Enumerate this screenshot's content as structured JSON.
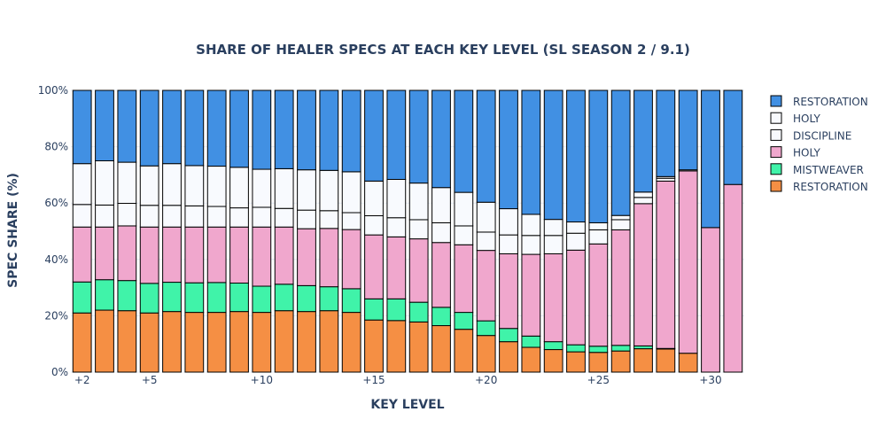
{
  "chart_data": {
    "type": "bar",
    "stacked": true,
    "title": "SHARE OF HEALER SPECS AT EACH KEY LEVEL (SL SEASON 2 / 9.1)",
    "xlabel": "KEY LEVEL",
    "ylabel": "SPEC SHARE (%)",
    "ylim": [
      0,
      100
    ],
    "y_ticks": [
      "0%",
      "20%",
      "40%",
      "60%",
      "80%",
      "100%"
    ],
    "x_tick_labels": [
      "+2",
      "+5",
      "+10",
      "+15",
      "+20",
      "+25",
      "+30"
    ],
    "categories": [
      2,
      3,
      4,
      5,
      6,
      7,
      8,
      9,
      10,
      11,
      12,
      13,
      14,
      15,
      16,
      17,
      18,
      19,
      20,
      21,
      22,
      23,
      24,
      25,
      26,
      27,
      28,
      29,
      30,
      31
    ],
    "series": [
      {
        "name": "RESTORATION",
        "color": "#F58F44",
        "values": [
          21,
          22,
          21.8,
          21,
          21.5,
          21.2,
          21.2,
          21.5,
          21.2,
          21.8,
          21.5,
          21.8,
          21.2,
          18.5,
          18.3,
          17.8,
          16.5,
          15.2,
          13,
          10.8,
          8.8,
          8,
          7.2,
          7,
          7.5,
          8.3,
          8.2,
          6.7,
          0,
          0
        ]
      },
      {
        "name": "MISTWEAVER",
        "color": "#40F3A9",
        "values": [
          11,
          10.8,
          10.7,
          10.5,
          10.4,
          10.5,
          10.6,
          10.1,
          9.3,
          9.4,
          9.2,
          8.5,
          8.4,
          7.5,
          7.7,
          7,
          6.5,
          6,
          5.2,
          4.7,
          4,
          2.8,
          2.5,
          2.2,
          2,
          1,
          0.2,
          0,
          0,
          0
        ]
      },
      {
        "name": "HOLY",
        "color": "#F0A7CD",
        "values": [
          19.5,
          18.7,
          19.4,
          20,
          19.6,
          19.8,
          19.7,
          19.9,
          21,
          20.3,
          20.2,
          20.7,
          21,
          22.7,
          22,
          22.5,
          23,
          24,
          25,
          26.5,
          29,
          31.2,
          33.6,
          36.3,
          41,
          50.5,
          59.4,
          64.7,
          51.3,
          66.6
        ]
      },
      {
        "name": "DISCIPLINE",
        "color": "#F8FAFE",
        "values": [
          8,
          7.8,
          8,
          7.7,
          7.7,
          7.5,
          7.3,
          6.8,
          7,
          6.6,
          6.6,
          6.3,
          6,
          6.8,
          6.8,
          6.8,
          7,
          6.7,
          6.5,
          6.7,
          6.7,
          6.5,
          6,
          5,
          3.6,
          2.2,
          1,
          0,
          0,
          0
        ]
      },
      {
        "name": "HOLY",
        "color": "#F8FAFE",
        "values": [
          14.5,
          15.7,
          14.6,
          14,
          14.8,
          14.3,
          14.3,
          14.4,
          13.5,
          14.1,
          14.3,
          14.3,
          14.5,
          12.3,
          13.6,
          13,
          12.5,
          11.9,
          10.6,
          9.3,
          7.5,
          5.7,
          4,
          2.5,
          1.5,
          1.9,
          0.6,
          0.4,
          0,
          0
        ]
      },
      {
        "name": "RESTORATION",
        "color": "#4190E3",
        "values": [
          26,
          25,
          25.5,
          26.8,
          26,
          26.7,
          26.9,
          27.3,
          28,
          27.8,
          28.2,
          28.4,
          28.9,
          32.2,
          31.6,
          32.9,
          34.5,
          36.2,
          39.7,
          42,
          44,
          45.8,
          46.7,
          47,
          44.4,
          36.1,
          30.6,
          28.2,
          48.7,
          33.4
        ]
      }
    ],
    "legend_order": [
      5,
      4,
      3,
      2,
      1,
      0
    ],
    "legend_position": "right"
  }
}
